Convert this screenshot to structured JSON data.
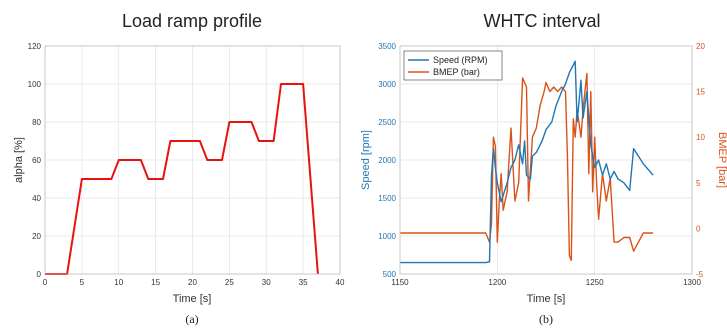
{
  "chart_data": [
    {
      "type": "line",
      "title": "Load ramp profile",
      "xlabel": "Time [s]",
      "ylabel": "alpha [%]",
      "xlim": [
        0,
        40
      ],
      "ylim": [
        0,
        120
      ],
      "xticks": [
        0,
        5,
        10,
        15,
        20,
        25,
        30,
        35,
        40
      ],
      "yticks": [
        0,
        20,
        40,
        60,
        80,
        100,
        120
      ],
      "grid": true,
      "panel_label": "(a)",
      "color": "#e8130f",
      "series": [
        {
          "x": [
            0,
            3,
            5,
            9,
            10,
            13,
            14,
            16,
            17,
            21,
            22,
            24,
            25,
            28,
            29,
            31,
            32,
            35,
            37
          ],
          "y": [
            0,
            0,
            50,
            50,
            60,
            60,
            50,
            50,
            70,
            70,
            60,
            60,
            80,
            80,
            70,
            70,
            100,
            100,
            0
          ]
        }
      ]
    },
    {
      "type": "line",
      "title": "WHTC interval",
      "xlabel": "Time [s]",
      "ylabel": "Speed [rpm]",
      "ylabel_right": "BMEP [bar]",
      "xlim": [
        1150,
        1300
      ],
      "ylim": [
        500,
        3500
      ],
      "ylim_right": [
        -5,
        20
      ],
      "xticks": [
        1150,
        1200,
        1250,
        1300
      ],
      "yticks": [
        500,
        1000,
        1500,
        2000,
        2500,
        3000,
        3500
      ],
      "yticks_right": [
        -5,
        0,
        5,
        10,
        15,
        20
      ],
      "grid": true,
      "legend": "top-left",
      "panel_label": "(b)",
      "left_color": "#1f77b4",
      "right_color": "#d95319",
      "series": [
        {
          "name": "Speed (RPM)",
          "axis": "left",
          "color": "#1f77b4",
          "x": [
            1150,
            1194,
            1196,
            1197,
            1198,
            1199,
            1200,
            1202,
            1205,
            1207,
            1209,
            1211,
            1213,
            1214,
            1215,
            1217,
            1218,
            1220,
            1223,
            1225,
            1228,
            1230,
            1233,
            1235,
            1237,
            1239,
            1240,
            1241,
            1243,
            1244,
            1246,
            1248,
            1250,
            1252,
            1254,
            1256,
            1258,
            1260,
            1262,
            1265,
            1268,
            1270,
            1275,
            1280
          ],
          "y": [
            650,
            650,
            660,
            1800,
            2150,
            1900,
            1700,
            1450,
            1700,
            1900,
            2000,
            2200,
            1950,
            2250,
            1800,
            1750,
            2050,
            2100,
            2250,
            2400,
            2500,
            2700,
            2900,
            3000,
            3150,
            3250,
            3300,
            2500,
            3050,
            2550,
            2900,
            2200,
            1900,
            2000,
            1800,
            1950,
            1750,
            1850,
            1750,
            1700,
            1600,
            2150,
            1950,
            1800
          ]
        },
        {
          "name": "BMEP (bar)",
          "axis": "right",
          "color": "#d95319",
          "x": [
            1150,
            1170,
            1194,
            1196,
            1197,
            1198,
            1199,
            1200,
            1201,
            1202,
            1203,
            1205,
            1207,
            1209,
            1211,
            1213,
            1215,
            1216,
            1218,
            1220,
            1222,
            1224,
            1225,
            1227,
            1229,
            1231,
            1233,
            1235,
            1236,
            1237,
            1238,
            1239,
            1240,
            1241,
            1242,
            1243,
            1244,
            1246,
            1247,
            1248,
            1249,
            1250,
            1251,
            1252,
            1254,
            1256,
            1258,
            1260,
            1262,
            1265,
            1268,
            1270,
            1275,
            1280
          ],
          "y": [
            -0.5,
            -0.5,
            -0.5,
            -1.5,
            0.5,
            10,
            9,
            -1.5,
            3,
            6,
            2,
            4,
            11,
            3,
            5,
            16.5,
            15.5,
            3,
            10,
            11,
            13.5,
            15,
            16,
            15,
            15.5,
            15,
            15.5,
            15,
            8,
            -3,
            -3.5,
            12,
            10,
            13,
            11.5,
            10,
            13,
            17,
            6,
            15,
            4,
            10,
            5,
            1,
            6,
            3,
            5.5,
            -1.5,
            -1.5,
            -1,
            -1,
            -2.5,
            -0.5,
            -0.5
          ]
        }
      ]
    }
  ]
}
